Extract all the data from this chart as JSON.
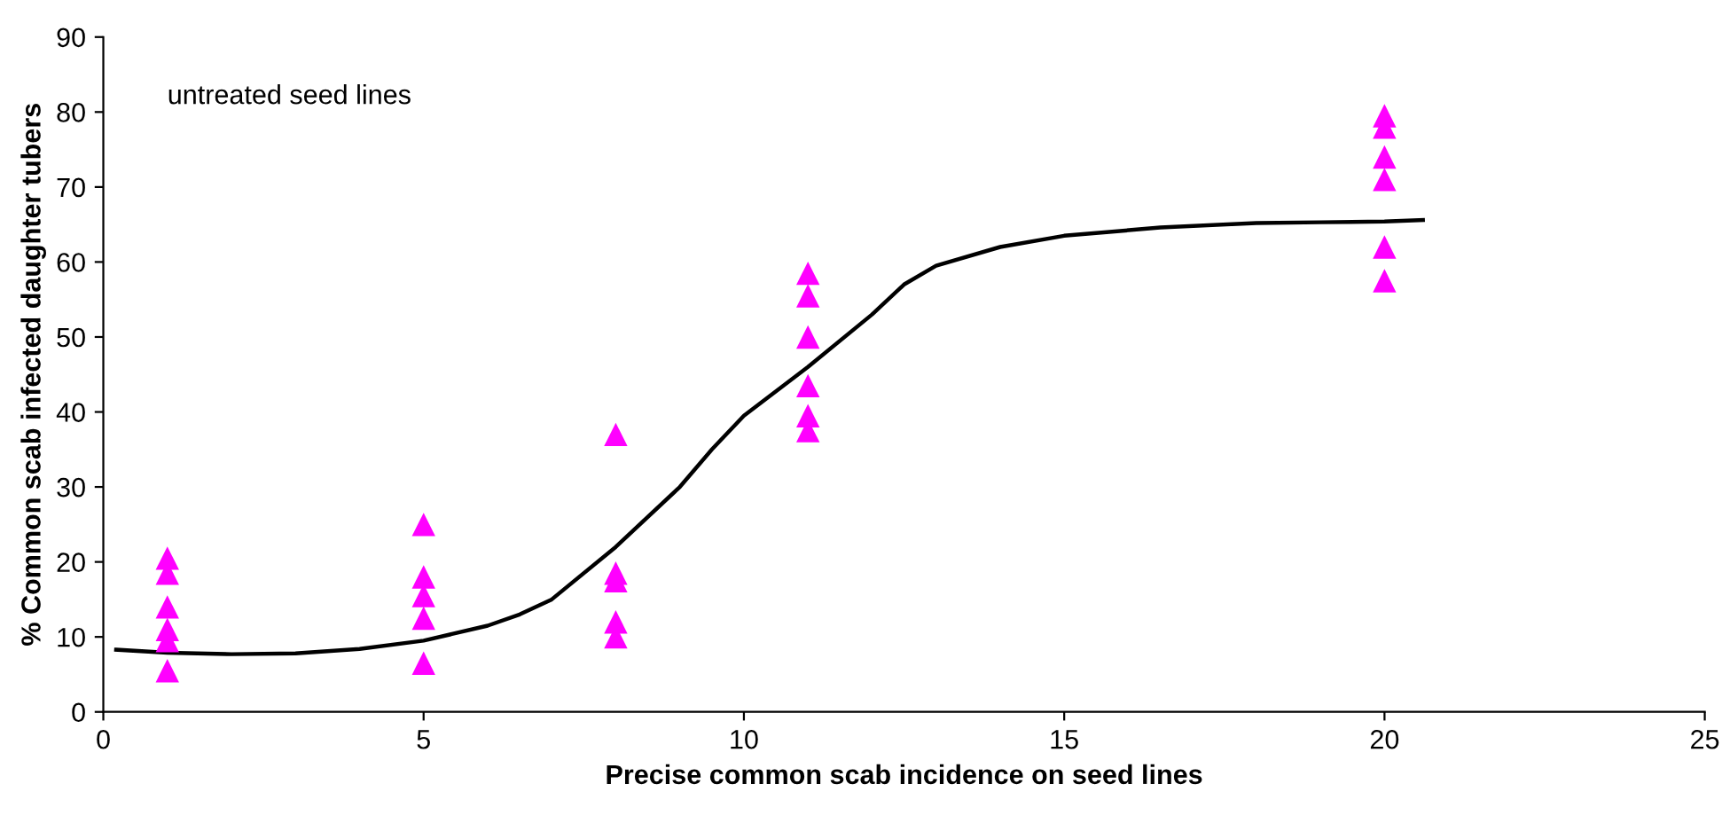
{
  "chart_data": {
    "type": "scatter",
    "xlabel": "Precise common scab incidence on seed lines",
    "ylabel": "% Common scab infected daughter tubers",
    "annotations": [
      "untreated seed lines"
    ],
    "xlim": [
      0,
      25
    ],
    "xticks": [
      0,
      5,
      10,
      15,
      20,
      25
    ],
    "ylim": [
      0,
      90
    ],
    "yticks": [
      0,
      10,
      20,
      30,
      40,
      50,
      60,
      70,
      80,
      90
    ],
    "grid": false,
    "legend": false,
    "series": [
      {
        "color": "#ff00ff",
        "marker": "triangle",
        "x": [
          1,
          1,
          1,
          1,
          1,
          1,
          5,
          5,
          5,
          5,
          5,
          8,
          8,
          8,
          8,
          8,
          11,
          11,
          11,
          11,
          11,
          11,
          20,
          20,
          20,
          20,
          20,
          20
        ],
        "values": [
          20.5,
          18.5,
          14,
          11,
          9.5,
          5.5,
          25,
          18,
          15.5,
          12.5,
          6.5,
          37,
          18.5,
          17.5,
          12,
          10,
          58.5,
          55.5,
          50,
          43.5,
          39.5,
          37.5,
          79.5,
          78,
          74,
          71,
          62,
          57.5
        ]
      },
      {
        "type": "line",
        "color": "#000000",
        "marker": "none",
        "line_style": "solid",
        "x": [
          0.2,
          1,
          2,
          3,
          4,
          5,
          6,
          6.5,
          7,
          8,
          9,
          9.5,
          10,
          11,
          12,
          12.5,
          13,
          14,
          15,
          16.5,
          18,
          19,
          20,
          20.6
        ],
        "values": [
          8.3,
          7.9,
          7.7,
          7.8,
          8.4,
          9.5,
          11.5,
          13,
          15,
          22,
          30,
          35,
          39.5,
          46,
          53,
          57,
          59.5,
          62,
          63.5,
          64.6,
          65.2,
          65.3,
          65.4,
          65.6
        ]
      }
    ]
  }
}
